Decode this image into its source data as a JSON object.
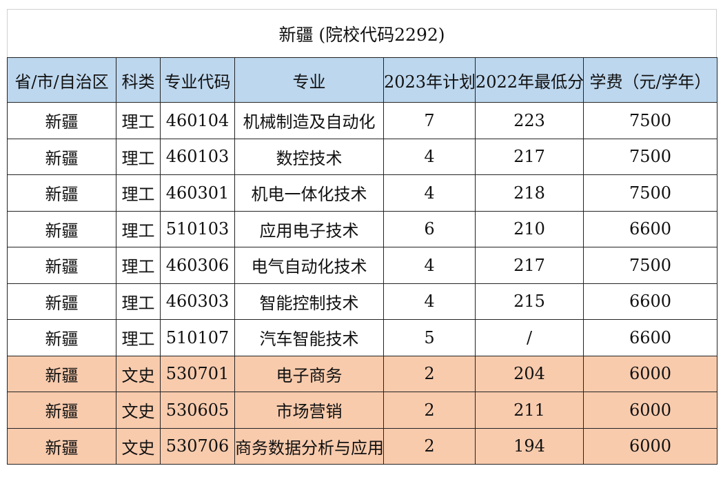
{
  "title": "新疆 (院校代码2292)",
  "columns": [
    "省/市/自治区",
    "科类",
    "专业代码",
    "专业",
    "2023年计划",
    "2022年最低分",
    "学费（元/学年）"
  ],
  "rows": [
    [
      "新疆",
      "理工",
      "460104",
      "机械制造及自动化",
      "7",
      "223",
      "7500"
    ],
    [
      "新疆",
      "理工",
      "460103",
      "数控技术",
      "4",
      "217",
      "7500"
    ],
    [
      "新疆",
      "理工",
      "460301",
      "机电一体化技术",
      "4",
      "218",
      "7500"
    ],
    [
      "新疆",
      "理工",
      "510103",
      "应用电子技术",
      "6",
      "210",
      "6600"
    ],
    [
      "新疆",
      "理工",
      "460306",
      "电气自动化技术",
      "4",
      "217",
      "7500"
    ],
    [
      "新疆",
      "理工",
      "460303",
      "智能控制技术",
      "4",
      "215",
      "6600"
    ],
    [
      "新疆",
      "理工",
      "510107",
      "汽车智能技术",
      "5",
      "/",
      "6600"
    ],
    [
      "新疆",
      "文史",
      "530701",
      "电子商务",
      "2",
      "204",
      "6000"
    ],
    [
      "新疆",
      "文史",
      "530605",
      "市场营销",
      "2",
      "211",
      "6000"
    ],
    [
      "新疆",
      "文史",
      "530706",
      "商务数据分析与应用",
      "2",
      "194",
      "6000"
    ]
  ],
  "colors": {
    "header_bg": "#bdd7ee",
    "science_row_bg": "#ffffff",
    "arts_row_bg": "#f8cbad"
  }
}
